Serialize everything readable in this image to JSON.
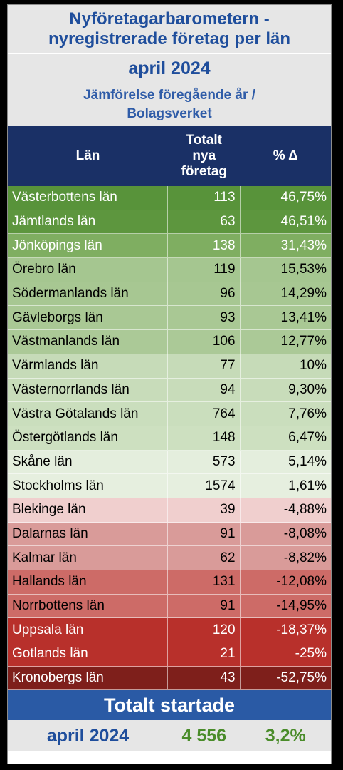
{
  "header": {
    "title_line1": "Nyföretagarbarometern -",
    "title_line2": "nyregistrerade företag per län",
    "period": "april 2024",
    "subtitle_line1": "Jämförelse föregående år /",
    "subtitle_line2": "Bolagsverket"
  },
  "table": {
    "columns": {
      "lan": "Län",
      "total_line1": "Totalt",
      "total_line2": "nya",
      "total_line3": "företag",
      "pct": "% Δ"
    },
    "rows": [
      {
        "name": "Västerbottens län",
        "total": "113",
        "pct": "46,75%",
        "bg": "#58933a",
        "text": "#ffffff"
      },
      {
        "name": "Jämtlands län",
        "total": "63",
        "pct": "46,51%",
        "bg": "#5d963e",
        "text": "#ffffff"
      },
      {
        "name": "Jönköpings län",
        "total": "138",
        "pct": "31,43%",
        "bg": "#7fae61",
        "text": "#ffffff"
      },
      {
        "name": "Örebro län",
        "total": "119",
        "pct": "15,53%",
        "bg": "#a5c690",
        "text": "#000000"
      },
      {
        "name": "Södermanlands län",
        "total": "96",
        "pct": "14,29%",
        "bg": "#a7c792",
        "text": "#000000"
      },
      {
        "name": "Gävleborgs län",
        "total": "93",
        "pct": "13,41%",
        "bg": "#a9c894",
        "text": "#000000"
      },
      {
        "name": "Västmanlands län",
        "total": "106",
        "pct": "12,77%",
        "bg": "#abc997",
        "text": "#000000"
      },
      {
        "name": "Värmlands län",
        "total": "77",
        "pct": "10%",
        "bg": "#c6dbb8",
        "text": "#000000"
      },
      {
        "name": "Västernorrlands län",
        "total": "94",
        "pct": "9,30%",
        "bg": "#c8dcba",
        "text": "#000000"
      },
      {
        "name": "Västra Götalands län",
        "total": "764",
        "pct": "7,76%",
        "bg": "#cadebd",
        "text": "#000000"
      },
      {
        "name": "Östergötlands län",
        "total": "148",
        "pct": "6,47%",
        "bg": "#cde0c0",
        "text": "#000000"
      },
      {
        "name": "Skåne län",
        "total": "573",
        "pct": "5,14%",
        "bg": "#e4eedd",
        "text": "#000000"
      },
      {
        "name": "Stockholms län",
        "total": "1574",
        "pct": "1,61%",
        "bg": "#e6efdf",
        "text": "#000000"
      },
      {
        "name": "Blekinge län",
        "total": "39",
        "pct": "-4,88%",
        "bg": "#f0cfce",
        "text": "#000000"
      },
      {
        "name": "Dalarnas län",
        "total": "91",
        "pct": "-8,08%",
        "bg": "#d99b99",
        "text": "#000000"
      },
      {
        "name": "Kalmar län",
        "total": "62",
        "pct": "-8,82%",
        "bg": "#d99b99",
        "text": "#000000"
      },
      {
        "name": "Hallands län",
        "total": "131",
        "pct": "-12,08%",
        "bg": "#cd6b67",
        "text": "#000000"
      },
      {
        "name": "Norrbottens län",
        "total": "91",
        "pct": "-14,95%",
        "bg": "#cd6b67",
        "text": "#000000"
      },
      {
        "name": "Uppsala län",
        "total": "120",
        "pct": "-18,37%",
        "bg": "#b8302b",
        "text": "#ffffff"
      },
      {
        "name": "Gotlands län",
        "total": "21",
        "pct": "-25%",
        "bg": "#b8302b",
        "text": "#ffffff"
      },
      {
        "name": "Kronobergs län",
        "total": "43",
        "pct": "-52,75%",
        "bg": "#7e1f1b",
        "text": "#ffffff"
      }
    ]
  },
  "summary": {
    "label": "Totalt startade",
    "period": "april 2024",
    "total": "4 556",
    "pct": "3,2%"
  },
  "colors": {
    "title_blue": "#1f4e9c",
    "header_navy": "#1a3066",
    "total_band_blue": "#2a5aa5",
    "positive_green": "#4a8c2a"
  }
}
